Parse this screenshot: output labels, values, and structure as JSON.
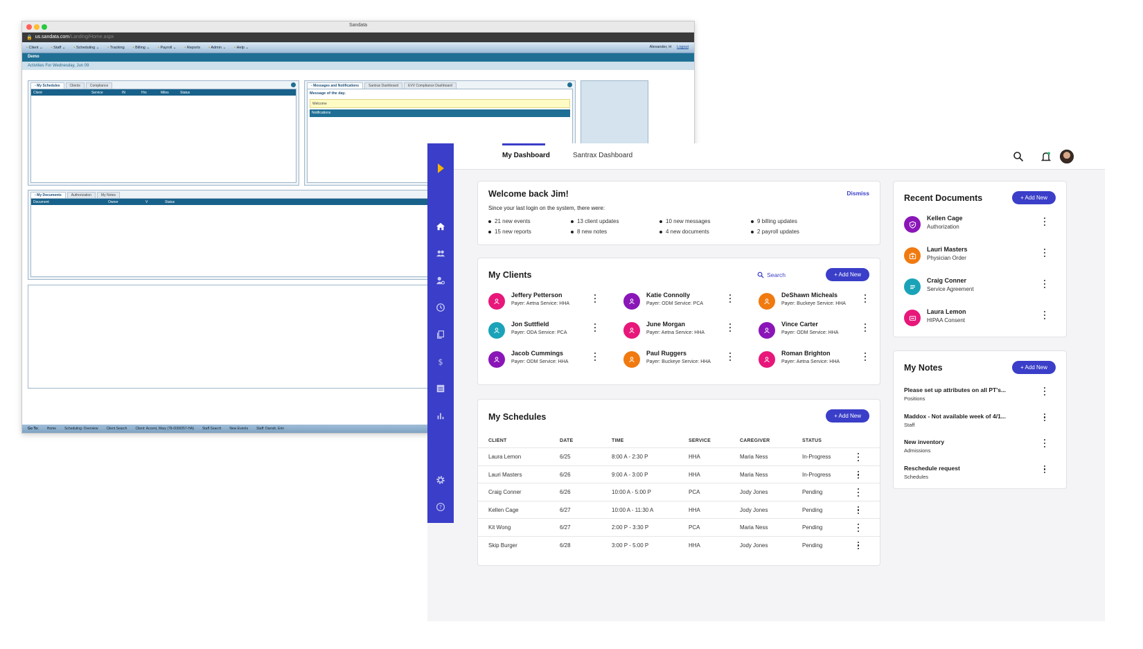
{
  "legacy": {
    "window_title": "Sandata",
    "url_host": "us.sandata.com",
    "url_path": "/Landing/Home.aspx",
    "menu": [
      "Client ⌄",
      "Staff ⌄",
      "Scheduling ⌄",
      "Tracking",
      "Billing ⌄",
      "Payroll ⌄",
      "Reports",
      "Admin ⌄",
      "Help ⌄"
    ],
    "user": "Alexander, H",
    "logout": "Logout",
    "demo": "Demo",
    "activities": "Activities For Wednesday, Jun 09",
    "tabs_top_left": [
      "My Schedules",
      "Clients",
      "Compliance"
    ],
    "schedule_cols": [
      "Client",
      "Service",
      "IN",
      "Hrs",
      "Miles",
      "Status"
    ],
    "tabs_top_right": [
      "Messages and Notifications",
      "Santrax Dashboard",
      "EVV Compliance Dashboard"
    ],
    "message_title": "Message of the day.",
    "welcome": "Welcome",
    "notifications": "Notifications",
    "tabs_bottom": [
      "My Documents",
      "Authorization",
      "My Notes"
    ],
    "doc_cols": [
      "Document",
      "Owner",
      "V",
      "Status"
    ],
    "footer_label": "Go To:",
    "footer_links": [
      "Home",
      "Scheduling: Overview",
      "Client Search",
      "Client: Accent, Mary (78-0000057-HA)",
      "Staff Search",
      "New Events",
      "Staff: Darrah, Erin"
    ]
  },
  "app": {
    "tabs": [
      "My Dashboard",
      "Santrax Dashboard"
    ],
    "welcome": {
      "title": "Welcome back Jim!",
      "dismiss": "Dismiss",
      "subtitle": "Since your last login on the system, there were:",
      "items": [
        "21 new events",
        "13 client updates",
        "10 new messages",
        "9 billing updates",
        "15 new reports",
        "8 new notes",
        "4 new documents",
        "2 payroll updates"
      ]
    },
    "clients": {
      "title": "My Clients",
      "search": "Search",
      "add": "+ Add New",
      "list": [
        {
          "name": "Jeffery Petterson",
          "meta": "Payer: Aetna   Service: HHA",
          "color": "#e8177a"
        },
        {
          "name": "Katie Connolly",
          "meta": "Payer: ODM   Service: PCA",
          "color": "#8a16b8"
        },
        {
          "name": "DeShawn Micheals",
          "meta": "Payer: Buckeye   Service: HHA",
          "color": "#f07a10"
        },
        {
          "name": "Jon Suttfield",
          "meta": "Payer: ODA   Service: PCA",
          "color": "#1aa3b8"
        },
        {
          "name": "June Morgan",
          "meta": "Payer: Aetna   Service: HHA",
          "color": "#e8177a"
        },
        {
          "name": "Vince Carter",
          "meta": "Payer: ODM   Service: HHA",
          "color": "#8a16b8"
        },
        {
          "name": "Jacob Cummings",
          "meta": "Payer: ODM   Service: HHA",
          "color": "#8a16b8"
        },
        {
          "name": "Paul Ruggers",
          "meta": "Payer: Buckeye   Service: HHA",
          "color": "#f07a10"
        },
        {
          "name": "Roman Brighton",
          "meta": "Payer: Aetna   Service: HHA",
          "color": "#e8177a"
        }
      ]
    },
    "schedules": {
      "title": "My Schedules",
      "add": "+ Add New",
      "columns": [
        "CLIENT",
        "DATE",
        "TIME",
        "SERVICE",
        "CAREGIVER",
        "STATUS"
      ],
      "rows": [
        [
          "Laura Lemon",
          "6/25",
          "8:00 A - 2:30 P",
          "HHA",
          "Maria Ness",
          "In-Progress"
        ],
        [
          "Lauri Masters",
          "6/26",
          "9:00 A - 3:00 P",
          "HHA",
          "Maria Ness",
          "In-Progress"
        ],
        [
          "Craig Conner",
          "6/26",
          "10:00 A - 5:00 P",
          "PCA",
          "Jody Jones",
          "Pending"
        ],
        [
          "Kellen Cage",
          "6/27",
          "10:00 A - 11:30 A",
          "HHA",
          "Jody Jones",
          "Pending"
        ],
        [
          "Kit Wong",
          "6/27",
          "2:00 P - 3:30 P",
          "PCA",
          "Maria Ness",
          "Pending"
        ],
        [
          "Skip Burger",
          "6/28",
          "3:00 P - 5:00 P",
          "HHA",
          "Jody Jones",
          "Pending"
        ]
      ]
    },
    "documents": {
      "title": "Recent Documents",
      "add": "+ Add New",
      "list": [
        {
          "name": "Kellen Cage",
          "type": "Authorization",
          "color": "#8a16b8",
          "icon": "shield-icon"
        },
        {
          "name": "Lauri Masters",
          "type": "Physician Order",
          "color": "#f07a10",
          "icon": "medkit-icon"
        },
        {
          "name": "Craig Conner",
          "type": "Service Agreement",
          "color": "#1aa3b8",
          "icon": "lines-icon"
        },
        {
          "name": "Laura Lemon",
          "type": "HIPAA Consent",
          "color": "#e8177a",
          "icon": "form-icon"
        }
      ]
    },
    "notes": {
      "title": "My Notes",
      "add": "+ Add New",
      "list": [
        {
          "title": "Please set up attributes on all PT's...",
          "category": "Positions"
        },
        {
          "title": "Maddox - Not available week of 4/1...",
          "category": "Staff"
        },
        {
          "title": "New inventory",
          "category": "Admissions"
        },
        {
          "title": "Reschedule request",
          "category": "Schedules"
        }
      ]
    }
  }
}
